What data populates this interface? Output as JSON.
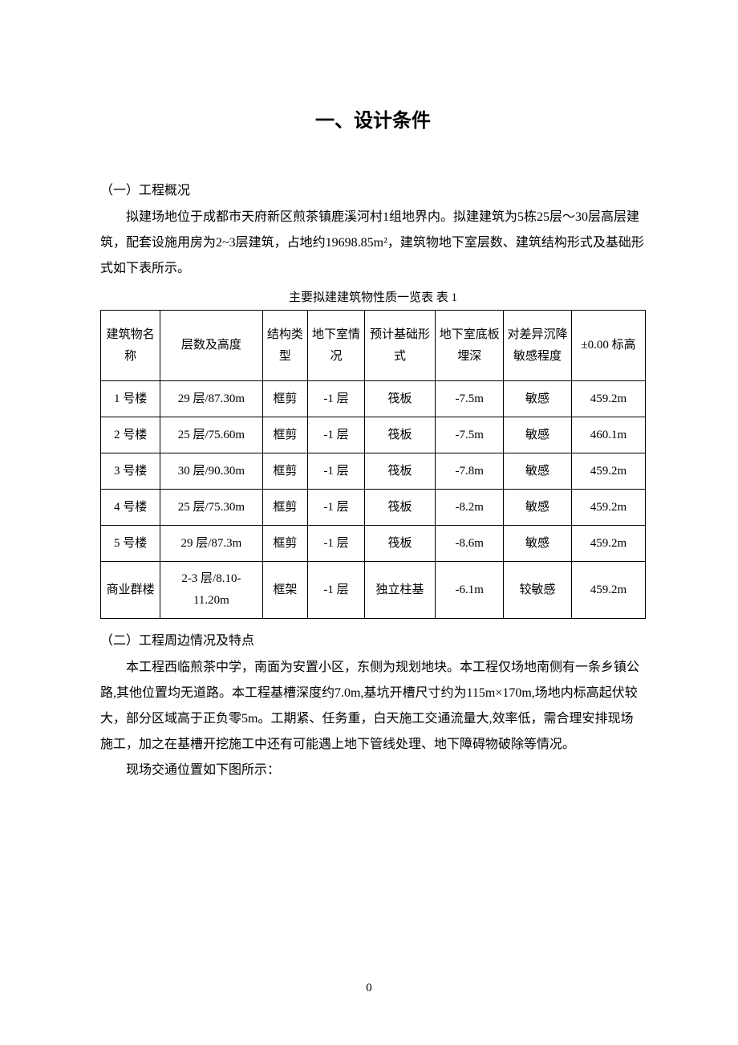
{
  "title": "一、设计条件",
  "section1": {
    "heading": "（一）工程概况",
    "paragraph": "拟建场地位于成都市天府新区煎茶镇鹿溪河村1组地界内。拟建建筑为5栋25层～30层高层建筑，配套设施用房为2~3层建筑，占地约19698.85m²，建筑物地下室层数、建筑结构形式及基础形式如下表所示。"
  },
  "table": {
    "caption": "主要拟建建筑物性质一览表 表 1",
    "headers": {
      "name": "建筑物名称",
      "floor": "层数及高度",
      "struct": "结构类型",
      "basement": "地下室情况",
      "foundation": "预计基础形式",
      "depth": "地下室底板埋深",
      "sensitivity": "对差异沉降敏感程度",
      "elevation": "±0.00 标高"
    },
    "rows": [
      {
        "name": "1 号楼",
        "floor": "29 层/87.30m",
        "struct": "框剪",
        "basement": "-1 层",
        "foundation": "筏板",
        "depth": "-7.5m",
        "sensitivity": "敏感",
        "elevation": "459.2m"
      },
      {
        "name": "2 号楼",
        "floor": "25 层/75.60m",
        "struct": "框剪",
        "basement": "-1 层",
        "foundation": "筏板",
        "depth": "-7.5m",
        "sensitivity": "敏感",
        "elevation": "460.1m"
      },
      {
        "name": "3 号楼",
        "floor": "30 层/90.30m",
        "struct": "框剪",
        "basement": "-1 层",
        "foundation": "筏板",
        "depth": "-7.8m",
        "sensitivity": "敏感",
        "elevation": "459.2m"
      },
      {
        "name": "4 号楼",
        "floor": "25 层/75.30m",
        "struct": "框剪",
        "basement": "-1 层",
        "foundation": "筏板",
        "depth": "-8.2m",
        "sensitivity": "敏感",
        "elevation": "459.2m"
      },
      {
        "name": "5 号楼",
        "floor": "29 层/87.3m",
        "struct": "框剪",
        "basement": "-1 层",
        "foundation": "筏板",
        "depth": "-8.6m",
        "sensitivity": "敏感",
        "elevation": "459.2m"
      },
      {
        "name": "商业群楼",
        "floor": "2-3 层/8.10-11.20m",
        "struct": "框架",
        "basement": "-1 层",
        "foundation": "独立柱基",
        "depth": "-6.1m",
        "sensitivity": "较敏感",
        "elevation": "459.2m"
      }
    ]
  },
  "section2": {
    "heading": "（二）工程周边情况及特点",
    "paragraph1": "本工程西临煎茶中学，南面为安置小区，东侧为规划地块。本工程仅场地南侧有一条乡镇公路,其他位置均无道路。本工程基槽深度约7.0m,基坑开槽尺寸约为115m×170m,场地内标高起伏较大，部分区域高于正负零5m。工期紧、任务重，白天施工交通流量大,效率低，需合理安排现场施工，加之在基槽开挖施工中还有可能遇上地下管线处理、地下障碍物破除等情况。",
    "paragraph2": "现场交通位置如下图所示："
  },
  "page_number": "0"
}
